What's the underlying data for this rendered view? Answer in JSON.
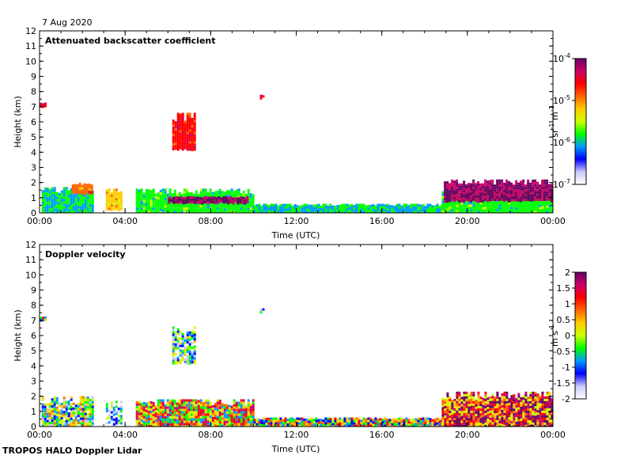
{
  "date_label": "7 Aug 2020",
  "footer_label": "TROPOS HALO Doppler Lidar",
  "chart_data": [
    {
      "type": "heatmap",
      "title": "Attenuated backscatter coefficient",
      "xlabel": "Time (UTC)",
      "ylabel": "Height (km)",
      "x_tick_labels": [
        "00:00",
        "04:00",
        "08:00",
        "12:00",
        "16:00",
        "20:00",
        "00:00"
      ],
      "x_ticks_hours": [
        0,
        4,
        8,
        12,
        16,
        20,
        24
      ],
      "xlim_hours": [
        0,
        24
      ],
      "y_ticks": [
        0,
        1,
        2,
        3,
        4,
        5,
        6,
        7,
        8,
        9,
        10,
        11,
        12
      ],
      "ylim": [
        0,
        12
      ],
      "colorbar": {
        "scale": "log",
        "range": [
          1e-07,
          0.0001
        ],
        "ticks": [
          {
            "base": "10",
            "exp": "-7"
          },
          {
            "base": "10",
            "exp": "-6"
          },
          {
            "base": "10",
            "exp": "-5"
          },
          {
            "base": "10",
            "exp": "-4"
          }
        ],
        "unit": {
          "a": "sr",
          "a_exp": "-1",
          "b": " m",
          "b_exp": "-1"
        }
      },
      "features": [
        {
          "t_start": 0.1,
          "t_end": 2.5,
          "h_bottom": 0.0,
          "h_top": 1.7,
          "level": 0.35
        },
        {
          "t_start": 1.5,
          "t_end": 2.4,
          "h_bottom": 1.3,
          "h_top": 2.0,
          "level": 0.7
        },
        {
          "t_start": 3.1,
          "t_end": 3.8,
          "h_bottom": 0.2,
          "h_top": 1.6,
          "level": 0.6
        },
        {
          "t_start": 4.5,
          "t_end": 10.0,
          "h_bottom": 0.0,
          "h_top": 1.6,
          "level": 0.4
        },
        {
          "t_start": 6.0,
          "t_end": 9.7,
          "h_bottom": 0.7,
          "h_top": 1.1,
          "level": 0.95
        },
        {
          "t_start": 6.2,
          "t_end": 7.2,
          "h_bottom": 4.2,
          "h_top": 6.6,
          "level": 0.8
        },
        {
          "t_start": 10.3,
          "t_end": 10.5,
          "h_bottom": 7.6,
          "h_top": 7.8,
          "level": 0.85
        },
        {
          "t_start": 0.0,
          "t_end": 0.3,
          "h_bottom": 7.0,
          "h_top": 7.3,
          "level": 0.85
        },
        {
          "t_start": 10.0,
          "t_end": 19.0,
          "h_bottom": 0.0,
          "h_top": 0.6,
          "level": 0.35
        },
        {
          "t_start": 18.8,
          "t_end": 24.0,
          "h_bottom": 0.0,
          "h_top": 1.5,
          "level": 0.4
        },
        {
          "t_start": 18.9,
          "t_end": 24.0,
          "h_bottom": 0.8,
          "h_top": 2.2,
          "level": 0.95
        }
      ]
    },
    {
      "type": "heatmap",
      "title": "Doppler velocity",
      "xlabel": "Time (UTC)",
      "ylabel": "Height (km)",
      "x_tick_labels": [
        "00:00",
        "04:00",
        "08:00",
        "12:00",
        "16:00",
        "20:00",
        "00:00"
      ],
      "x_ticks_hours": [
        0,
        4,
        8,
        12,
        16,
        20,
        24
      ],
      "xlim_hours": [
        0,
        24
      ],
      "y_ticks": [
        0,
        1,
        2,
        3,
        4,
        5,
        6,
        7,
        8,
        9,
        10,
        11,
        12
      ],
      "ylim": [
        0,
        12
      ],
      "colorbar": {
        "scale": "linear",
        "range": [
          -2,
          2
        ],
        "ticks": [
          "-2",
          "-1.5",
          "-1",
          "-0.5",
          "0",
          "0.5",
          "1",
          "1.5",
          "2"
        ],
        "unit": {
          "a": "m",
          "a_exp": "",
          "b": " s",
          "b_exp": "-1"
        }
      },
      "features": [
        {
          "t_start": 0.1,
          "t_end": 2.5,
          "h_bottom": 0.0,
          "h_top": 2.0,
          "level": 0.35
        },
        {
          "t_start": 3.1,
          "t_end": 3.8,
          "h_bottom": 0.2,
          "h_top": 1.7,
          "level": 0.2
        },
        {
          "t_start": 4.5,
          "t_end": 10.0,
          "h_bottom": 0.0,
          "h_top": 1.8,
          "level": 0.6
        },
        {
          "t_start": 6.2,
          "t_end": 7.2,
          "h_bottom": 4.2,
          "h_top": 6.6,
          "level": 0.25
        },
        {
          "t_start": 0.0,
          "t_end": 0.3,
          "h_bottom": 7.0,
          "h_top": 7.3,
          "level": 0.5
        },
        {
          "t_start": 10.3,
          "t_end": 10.5,
          "h_bottom": 7.6,
          "h_top": 7.8,
          "level": 0.15
        },
        {
          "t_start": 10.0,
          "t_end": 19.0,
          "h_bottom": 0.0,
          "h_top": 0.6,
          "level": 0.5
        },
        {
          "t_start": 18.8,
          "t_end": 24.0,
          "h_bottom": 0.0,
          "h_top": 2.3,
          "level": 0.8
        }
      ]
    }
  ],
  "colormap": [
    "#ffffff",
    "#c8c8ff",
    "#0000ff",
    "#0099ff",
    "#00ff00",
    "#ccff00",
    "#ffcc00",
    "#ff6600",
    "#ff0000",
    "#cc0066",
    "#660066"
  ]
}
